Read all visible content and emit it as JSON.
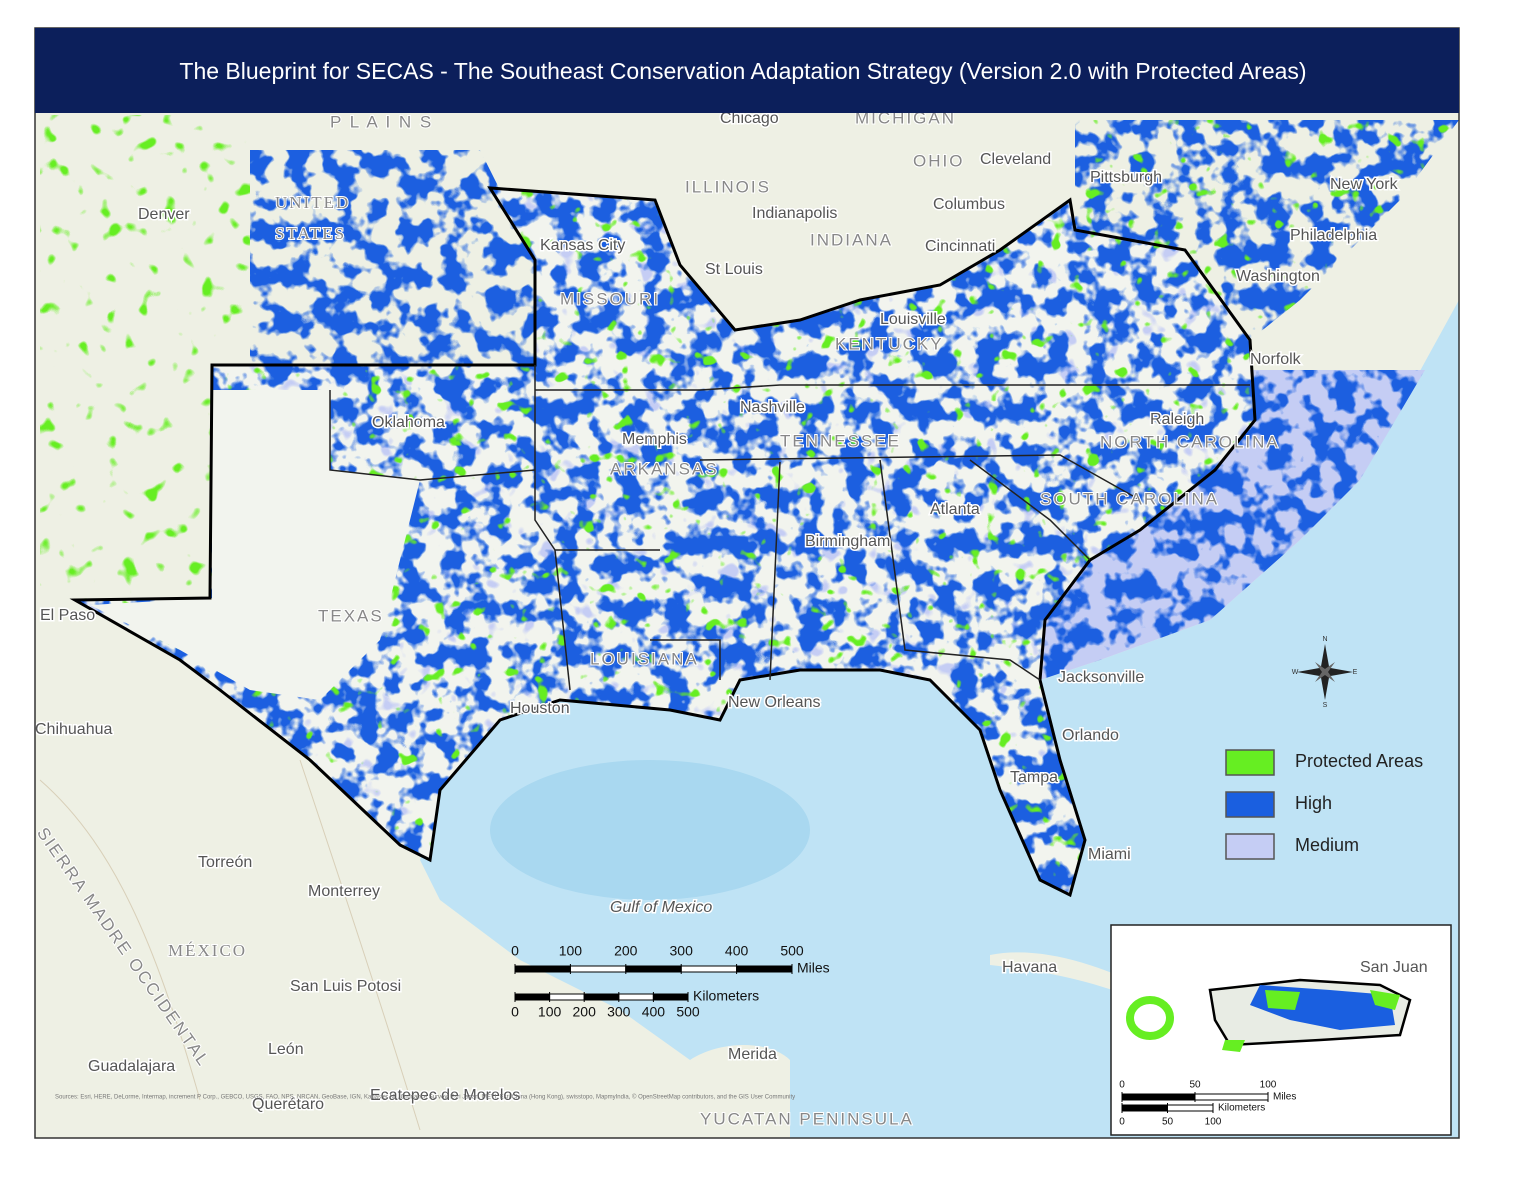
{
  "title": "The Blueprint for SECAS - The Southeast Conservation Adaptation Strategy (Version 2.0 with Protected Areas)",
  "legend": [
    {
      "label": "Protected Areas",
      "color": "#66ee22"
    },
    {
      "label": "High",
      "color": "#1a5fe0"
    },
    {
      "label": "Medium",
      "color": "#c5cdf4"
    }
  ],
  "places": [
    {
      "label": "P L A I N S"
    },
    {
      "label": "Chicago"
    },
    {
      "label": "MICHIGAN"
    },
    {
      "label": "OHIO"
    },
    {
      "label": "Cleveland"
    },
    {
      "label": "ILLINOIS"
    },
    {
      "label": "Indianapolis"
    },
    {
      "label": "Columbus"
    },
    {
      "label": "Denver"
    },
    {
      "label": "UNITED"
    },
    {
      "label": "STATES"
    },
    {
      "label": "Pittsburgh"
    },
    {
      "label": "New York"
    },
    {
      "label": "Philadelphia"
    },
    {
      "label": "Washington"
    },
    {
      "label": "INDIANA"
    },
    {
      "label": "Cincinnati"
    },
    {
      "label": "Kansas City"
    },
    {
      "label": "St Louis"
    },
    {
      "label": "MISSOURI"
    },
    {
      "label": "Louisville"
    },
    {
      "label": "KENTUCKY"
    },
    {
      "label": "Norfolk"
    },
    {
      "label": "Oklahoma"
    },
    {
      "label": "Nashville"
    },
    {
      "label": "Memphis"
    },
    {
      "label": "TENNESSEE"
    },
    {
      "label": "Raleigh"
    },
    {
      "label": "NORTH CAROLINA"
    },
    {
      "label": "ARKANSAS"
    },
    {
      "label": "Atlanta"
    },
    {
      "label": "SOUTH CAROLINA"
    },
    {
      "label": "Birmingham"
    },
    {
      "label": "TEXAS"
    },
    {
      "label": "LOUISIANA"
    },
    {
      "label": "Jacksonville"
    },
    {
      "label": "New Orleans"
    },
    {
      "label": "Houston"
    },
    {
      "label": "Orlando"
    },
    {
      "label": "Tampa"
    },
    {
      "label": "Miami"
    },
    {
      "label": "El Paso"
    },
    {
      "label": "Chihuahua"
    },
    {
      "label": "Torreón"
    },
    {
      "label": "Monterrey"
    },
    {
      "label": "MÉXICO"
    },
    {
      "label": "San Luis Potosi"
    },
    {
      "label": "León"
    },
    {
      "label": "Guadalajara"
    },
    {
      "label": "Querétaro"
    },
    {
      "label": "Ecatepec de Morelos"
    },
    {
      "label": "Havana"
    },
    {
      "label": "Merida"
    },
    {
      "label": "YUCATAN PENINSULA"
    },
    {
      "label": "Gulf of Mexico"
    },
    {
      "label": "SIERRA MADRE OCCIDENTAL"
    }
  ],
  "scale_bar": {
    "miles_ticks": [
      0,
      100,
      200,
      300,
      400,
      500
    ],
    "miles_unit": "Miles",
    "km_ticks": [
      0,
      100,
      200,
      300,
      400,
      500
    ],
    "km_unit": "Kilometers"
  },
  "compass": {
    "n": "N",
    "e": "E",
    "s": "S",
    "w": "W"
  },
  "inset": {
    "place": "San Juan",
    "miles_ticks": [
      0,
      50,
      100
    ],
    "miles_unit": "Miles",
    "km_ticks": [
      0,
      50,
      100
    ],
    "km_unit": "Kilometers"
  },
  "attribution": "Sources: Esri, HERE, DeLorme, Intermap, increment P Corp., GEBCO, USGS, FAO, NPS, NRCAN, GeoBase, IGN, Kadaster NL, Ordnance Survey, Esri Japan, METI, Esri China (Hong Kong), swisstopo, MapmyIndia, © OpenStreetMap contributors, and the GIS User Community"
}
